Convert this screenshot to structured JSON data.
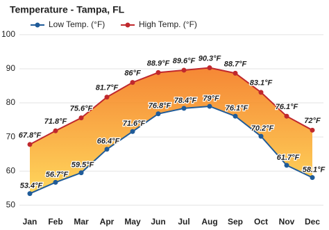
{
  "chart_data": {
    "type": "line",
    "title": "Temperature - Tampa, FL",
    "categories": [
      "Jan",
      "Feb",
      "Mar",
      "Apr",
      "May",
      "Jun",
      "Jul",
      "Aug",
      "Sep",
      "Oct",
      "Nov",
      "Dec"
    ],
    "series": [
      {
        "name": "Low Temp. (°F)",
        "color": "#1f5b99",
        "values": [
          53.4,
          56.7,
          59.5,
          66.4,
          71.6,
          76.8,
          78.4,
          79,
          76.1,
          70.2,
          61.7,
          58.1
        ],
        "value_labels": [
          "53.4°F",
          "56.7°F",
          "59.5°F",
          "66.4°F",
          "71.6°F",
          "76.8°F",
          "78.4°F",
          "79°F",
          "76.1°F",
          "70.2°F",
          "61.7°F",
          "58.1°F"
        ]
      },
      {
        "name": "High Temp. (°F)",
        "color": "#c0282d",
        "values": [
          67.8,
          71.8,
          75.6,
          81.7,
          86,
          88.9,
          89.6,
          90.3,
          88.7,
          83.1,
          76.1,
          72
        ],
        "value_labels": [
          "67.8°F",
          "71.8°F",
          "75.6°F",
          "81.7°F",
          "86°F",
          "88.9°F",
          "89.6°F",
          "90.3°F",
          "88.7°F",
          "83.1°F",
          "76.1°F",
          "72°F"
        ]
      }
    ],
    "ylim": [
      47,
      101
    ],
    "yticks": [
      50,
      60,
      70,
      80,
      90,
      100
    ],
    "grid": true
  }
}
